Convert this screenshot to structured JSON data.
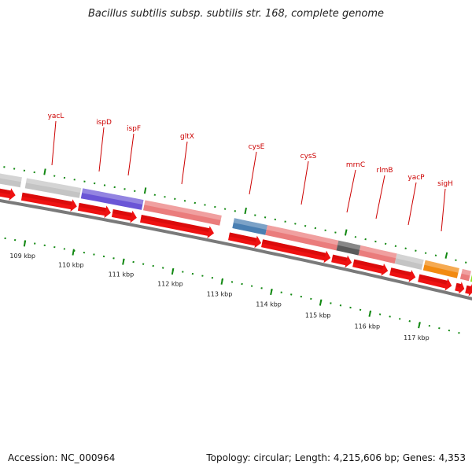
{
  "title": "Bacillus subtilis subsp. subtilis str. 168, complete genome",
  "footer": {
    "accession": "Accession: NC_000964",
    "topology": "Topology: circular; Length: 4,215,606 bp; Genes: 4,353"
  },
  "gene_labels": [
    "yacL",
    "ispD",
    "ispF",
    "gltX",
    "cysE",
    "cysS",
    "mrnC",
    "rlmB",
    "yacP",
    "sigH"
  ],
  "kbp_labels": [
    "109 kbp",
    "110 kbp",
    "111 kbp",
    "112 kbp",
    "113 kbp",
    "114 kbp",
    "115 kbp",
    "116 kbp",
    "117 kbp"
  ],
  "colors": {
    "backbone": "#7a7a7a",
    "arrow": "#ee1111",
    "tick": "#118811",
    "label": "#cc0000",
    "gray_feature": "#c4c4c4",
    "purple_feature": "#6a55d6",
    "pink_feature": "#ea7c7c",
    "blue_feature": "#4a7fb2",
    "dark_feature": "#5a5a5a",
    "orange_feature": "#f28a10",
    "green_feature": "#8ce020"
  }
}
